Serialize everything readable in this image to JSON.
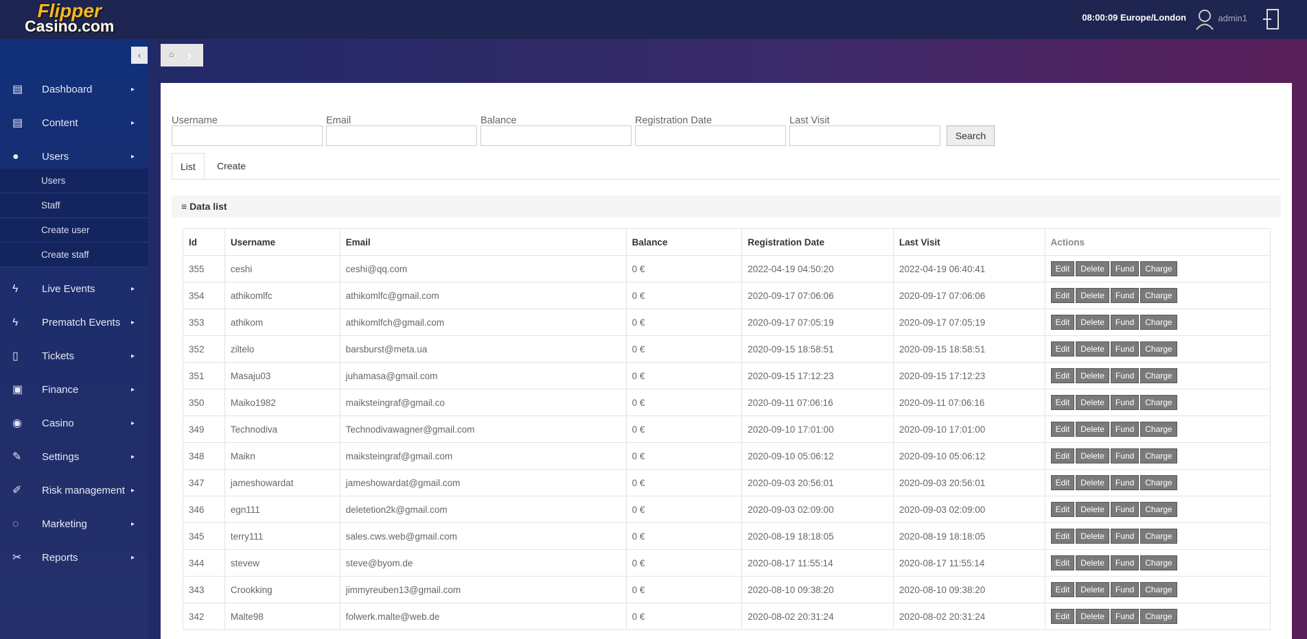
{
  "header": {
    "logo_top": "Flipper",
    "logo_bottom": "Casino.com",
    "time": "08:00:09 Europe/London",
    "user": "admin1"
  },
  "sidebar": {
    "items": [
      {
        "label": "Dashboard",
        "icon": "▤",
        "children": []
      },
      {
        "label": "Content",
        "icon": "▤",
        "children": []
      },
      {
        "label": "Users",
        "icon": "●",
        "children": [
          "Users",
          "Staff",
          "Create user",
          "Create staff"
        ]
      },
      {
        "label": "Live Events",
        "icon": "ϟ",
        "children": []
      },
      {
        "label": "Prematch Events",
        "icon": "ϟ",
        "children": []
      },
      {
        "label": "Tickets",
        "icon": "▯",
        "children": []
      },
      {
        "label": "Finance",
        "icon": "▣",
        "children": []
      },
      {
        "label": "Casino",
        "icon": "◉",
        "children": []
      },
      {
        "label": "Settings",
        "icon": "✎",
        "children": []
      },
      {
        "label": "Risk management",
        "icon": "✐",
        "children": []
      },
      {
        "label": "Marketing",
        "icon": "◌",
        "children": []
      },
      {
        "label": "Reports",
        "icon": "✂",
        "children": []
      }
    ]
  },
  "filters": {
    "labels": [
      "Username",
      "Email",
      "Balance",
      "Registration Date",
      "Last Visit"
    ],
    "search": "Search"
  },
  "tabs": [
    "List",
    "Create"
  ],
  "panel_title": "Data list",
  "table": {
    "columns": [
      "Id",
      "Username",
      "Email",
      "Balance",
      "Registration Date",
      "Last Visit",
      "Actions"
    ],
    "actions": [
      "Edit",
      "Delete",
      "Fund",
      "Charge"
    ],
    "rows": [
      [
        "355",
        "ceshi",
        "ceshi@qq.com",
        "0 €",
        "2022-04-19 04:50:20",
        "2022-04-19 06:40:41"
      ],
      [
        "354",
        "athikomlfc",
        "athikomlfc@gmail.com",
        "0 €",
        "2020-09-17 07:06:06",
        "2020-09-17 07:06:06"
      ],
      [
        "353",
        "athikom",
        "athikomlfch@gmail.com",
        "0 €",
        "2020-09-17 07:05:19",
        "2020-09-17 07:05:19"
      ],
      [
        "352",
        "ziltelo",
        "barsburst@meta.ua",
        "0 €",
        "2020-09-15 18:58:51",
        "2020-09-15 18:58:51"
      ],
      [
        "351",
        "Masaju03",
        "juhamasa@gmail.com",
        "0 €",
        "2020-09-15 17:12:23",
        "2020-09-15 17:12:23"
      ],
      [
        "350",
        "Maiko1982",
        "maiksteingraf@gmail.co",
        "0 €",
        "2020-09-11 07:06:16",
        "2020-09-11 07:06:16"
      ],
      [
        "349",
        "Technodiva",
        "Technodivawagner@gmail.com",
        "0 €",
        "2020-09-10 17:01:00",
        "2020-09-10 17:01:00"
      ],
      [
        "348",
        "Maikn",
        "maiksteingraf@gmail.com",
        "0 €",
        "2020-09-10 05:06:12",
        "2020-09-10 05:06:12"
      ],
      [
        "347",
        "jameshowardat",
        "jameshowardat@gmail.com",
        "0 €",
        "2020-09-03 20:56:01",
        "2020-09-03 20:56:01"
      ],
      [
        "346",
        "egn111",
        "deletetion2k@gmail.com",
        "0 €",
        "2020-09-03 02:09:00",
        "2020-09-03 02:09:00"
      ],
      [
        "345",
        "terry111",
        "sales.cws.web@gmail.com",
        "0 €",
        "2020-08-19 18:18:05",
        "2020-08-19 18:18:05"
      ],
      [
        "344",
        "stevew",
        "steve@byom.de",
        "0 €",
        "2020-08-17 11:55:14",
        "2020-08-17 11:55:14"
      ],
      [
        "343",
        "Crookking",
        "jimmyreuben13@gmail.com",
        "0 €",
        "2020-08-10 09:38:20",
        "2020-08-10 09:38:20"
      ],
      [
        "342",
        "Malte98",
        "folwerk.malte@web.de",
        "0 €",
        "2020-08-02 20:31:24",
        "2020-08-02 20:31:24"
      ]
    ]
  }
}
